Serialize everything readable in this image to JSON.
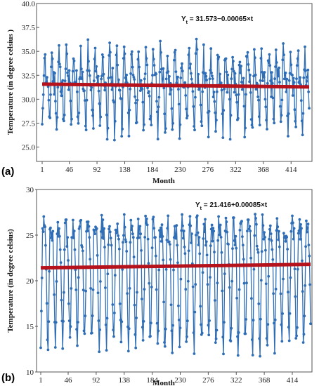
{
  "colors": {
    "series": "#2f6db5",
    "trend": "#b5121b",
    "axis": "#555555"
  },
  "chart_data": [
    {
      "type": "line",
      "panel_label": "(a)",
      "equation_main": "Y",
      "equation_sub": "t",
      "equation_rest": " = 31.573−0.00065×t",
      "xlabel": "Month",
      "ylabel": "Temperature (in degree celsius )",
      "xlim": [
        1,
        444
      ],
      "ylim": [
        23.5,
        40
      ],
      "xticks": [
        1,
        46,
        92,
        138,
        184,
        230,
        276,
        322,
        368,
        414
      ],
      "xtick_labels": [
        "1",
        "46",
        "92",
        "138",
        "184",
        "230",
        "276",
        "322",
        "368",
        "414"
      ],
      "yticks": [
        25,
        27.5,
        30,
        32.5,
        35,
        37.5,
        40
      ],
      "ytick_labels": [
        "25.0",
        "27.5",
        "30.0",
        "32.5",
        "35.0",
        "37.5",
        "40.0"
      ],
      "series": [
        {
          "role": "observed",
          "cycle": [
            27.0,
            28.0,
            31.0,
            33.5,
            35.0,
            34.0,
            32.5,
            32.0,
            31.5,
            32.0,
            31.0,
            29.0
          ]
        },
        {
          "role": "trend",
          "intercept": 31.573,
          "slope": -0.00065
        }
      ]
    },
    {
      "type": "line",
      "panel_label": "(b)",
      "equation_main": "Y",
      "equation_sub": "t",
      "equation_rest": " = 21.416+0.00085×t",
      "xlabel": "Month",
      "ylabel": "Temperature (in degree celsius)",
      "xlim": [
        1,
        444
      ],
      "ylim": [
        10,
        30
      ],
      "xticks": [
        1,
        46,
        92,
        138,
        184,
        230,
        276,
        322,
        368,
        414
      ],
      "xtick_labels": [
        "1",
        "46",
        "92",
        "138",
        "184",
        "230",
        "276",
        "322",
        "368",
        "414"
      ],
      "yticks": [
        10,
        15,
        20,
        25,
        30
      ],
      "ytick_labels": [
        "10",
        "15",
        "20",
        "25",
        "30"
      ],
      "series": [
        {
          "role": "observed",
          "cycle": [
            13.0,
            15.5,
            20.0,
            24.5,
            26.0,
            26.0,
            25.5,
            25.0,
            24.5,
            22.5,
            18.5,
            14.5
          ]
        },
        {
          "role": "trend",
          "intercept": 21.416,
          "slope": 0.00085
        }
      ]
    }
  ]
}
